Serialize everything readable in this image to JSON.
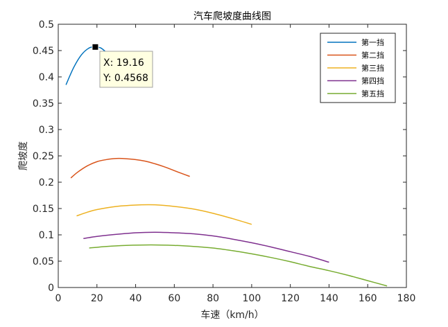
{
  "chart_data": {
    "type": "line",
    "title": "汽车爬坡度曲线图",
    "xlabel": "车速（km/h）",
    "ylabel": "爬坡度",
    "xlim": [
      0,
      180
    ],
    "ylim": [
      0,
      0.5
    ],
    "xticks": [
      0,
      20,
      40,
      60,
      80,
      100,
      120,
      140,
      160,
      180
    ],
    "yticks": [
      0,
      0.05,
      0.1,
      0.15,
      0.2,
      0.25,
      0.3,
      0.35,
      0.4,
      0.45,
      0.5
    ],
    "xtick_labels": [
      "0",
      "20",
      "40",
      "60",
      "80",
      "100",
      "120",
      "140",
      "160",
      "180"
    ],
    "ytick_labels": [
      "0",
      "0.05",
      "0.1",
      "0.15",
      "0.2",
      "0.25",
      "0.3",
      "0.35",
      "0.4",
      "0.45",
      "0.5"
    ],
    "grid": false,
    "legend_position": "top-right",
    "series": [
      {
        "name": "第一挡",
        "color": "#0072BD",
        "x": [
          4,
          8,
          12,
          16,
          19.16,
          22,
          25
        ],
        "y": [
          0.385,
          0.418,
          0.442,
          0.455,
          0.4568,
          0.455,
          0.446
        ]
      },
      {
        "name": "第二挡",
        "color": "#D95319",
        "x": [
          6.5,
          10,
          15,
          20,
          25,
          30,
          33,
          40,
          45,
          50,
          55,
          60,
          65,
          68
        ],
        "y": [
          0.208,
          0.219,
          0.231,
          0.239,
          0.243,
          0.245,
          0.245,
          0.243,
          0.24,
          0.235,
          0.229,
          0.222,
          0.215,
          0.211
        ]
      },
      {
        "name": "第三挡",
        "color": "#EDB120",
        "x": [
          9.5,
          15,
          20,
          30,
          43,
          50,
          60,
          70,
          80,
          90,
          100
        ],
        "y": [
          0.136,
          0.143,
          0.148,
          0.154,
          0.157,
          0.157,
          0.154,
          0.149,
          0.141,
          0.131,
          0.12
        ]
      },
      {
        "name": "第四挡",
        "color": "#7E2F8E",
        "x": [
          13,
          20,
          30,
          40,
          50,
          60,
          70,
          80,
          90,
          100,
          110,
          120,
          130,
          140
        ],
        "y": [
          0.093,
          0.097,
          0.101,
          0.104,
          0.105,
          0.104,
          0.102,
          0.098,
          0.092,
          0.085,
          0.077,
          0.068,
          0.059,
          0.048
        ]
      },
      {
        "name": "第五挡",
        "color": "#77AC30",
        "x": [
          16,
          25,
          35,
          48,
          60,
          70,
          80,
          90,
          100,
          110,
          120,
          130,
          140,
          150,
          160,
          170
        ],
        "y": [
          0.075,
          0.078,
          0.08,
          0.081,
          0.08,
          0.078,
          0.075,
          0.07,
          0.064,
          0.057,
          0.049,
          0.04,
          0.032,
          0.023,
          0.013,
          0.003
        ]
      }
    ],
    "datatip": {
      "x": 19.16,
      "y": 0.4568,
      "label_x": "X: 19.16",
      "label_y": "Y: 0.4568"
    }
  }
}
